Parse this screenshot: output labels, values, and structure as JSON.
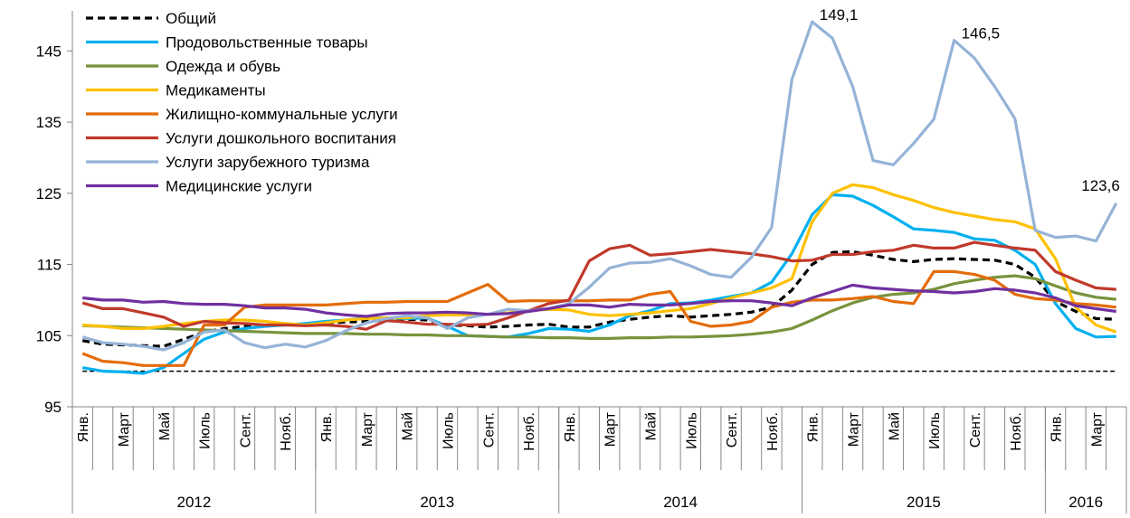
{
  "chart_data": {
    "type": "line",
    "categories": [
      "Янв.",
      null,
      "Март",
      null,
      "Май",
      null,
      "Июль",
      null,
      "Сент.",
      null,
      "Нояб.",
      null,
      "Янв.",
      null,
      "Март",
      null,
      "Май",
      null,
      "Июль",
      null,
      "Сент.",
      null,
      "Нояб.",
      null,
      "Янв.",
      null,
      "Март",
      null,
      "Май",
      null,
      "Июль",
      null,
      "Сент.",
      null,
      "Нояб.",
      null,
      "Янв.",
      null,
      "Март",
      null,
      "Май",
      null,
      "Июль",
      null,
      "Сент.",
      null,
      "Нояб.",
      null,
      "Янв.",
      null,
      "Март",
      null
    ],
    "year_groups": [
      {
        "label": "2012",
        "months": 12
      },
      {
        "label": "2013",
        "months": 12
      },
      {
        "label": "2014",
        "months": 12
      },
      {
        "label": "2015",
        "months": 12
      },
      {
        "label": "2016",
        "months": 4
      }
    ],
    "ylim": [
      95,
      150
    ],
    "yticks": [
      95,
      105,
      115,
      125,
      135,
      145
    ],
    "reference_line": 100,
    "series": [
      {
        "name": "Общий",
        "color": "#000000",
        "dashed": true,
        "values": [
          104.3,
          103.8,
          103.7,
          103.6,
          103.5,
          104.5,
          105.5,
          106,
          106.3,
          106.5,
          106.5,
          106.6,
          106.8,
          106.9,
          107,
          107.2,
          107.3,
          107.2,
          106.5,
          106.4,
          106.2,
          106.3,
          106.5,
          106.6,
          106.2,
          106.2,
          106.9,
          107.3,
          107.6,
          107.8,
          107.6,
          107.8,
          108,
          108.3,
          109,
          111.4,
          115,
          116.7,
          116.8,
          116.3,
          115.7,
          115.4,
          115.7,
          115.8,
          115.7,
          115.6,
          115,
          113.2,
          109.8,
          108.4,
          107.4,
          107.3
        ]
      },
      {
        "name": "Продовольственные товары",
        "color": "#00b0f0",
        "values": [
          100.5,
          100,
          99.9,
          99.7,
          100.5,
          102.5,
          104.5,
          105.5,
          106,
          106.3,
          106.5,
          106.7,
          107,
          107.2,
          107.5,
          107.5,
          107.4,
          107.5,
          106.3,
          105,
          104.9,
          104.8,
          105.3,
          106,
          105.9,
          105.6,
          106.5,
          107.8,
          108.5,
          109.5,
          109.6,
          110,
          110.5,
          111,
          112.5,
          116.5,
          122,
          124.8,
          124.6,
          123.3,
          121.7,
          120,
          119.8,
          119.5,
          118.6,
          118.4,
          117,
          115,
          109.5,
          106,
          104.8,
          104.9
        ]
      },
      {
        "name": "Одежда и обувь",
        "color": "#77933c",
        "values": [
          106.4,
          106.3,
          106.2,
          106.1,
          106,
          105.9,
          105.8,
          105.7,
          105.6,
          105.5,
          105.4,
          105.3,
          105.3,
          105.3,
          105.2,
          105.2,
          105.1,
          105.1,
          105,
          105,
          104.9,
          104.8,
          104.8,
          104.7,
          104.7,
          104.6,
          104.6,
          104.7,
          104.7,
          104.8,
          104.8,
          104.9,
          105,
          105.2,
          105.5,
          106,
          107.2,
          108.5,
          109.6,
          110.4,
          110.8,
          111,
          111.5,
          112.3,
          112.8,
          113.2,
          113.4,
          113,
          112,
          111,
          110.4,
          110.1
        ]
      },
      {
        "name": "Медикаменты",
        "color": "#ffc000",
        "values": [
          106.5,
          106.3,
          106,
          106,
          106.3,
          106.7,
          107,
          107.2,
          107.2,
          107,
          106.7,
          106.5,
          106.8,
          107.2,
          107.4,
          107.5,
          107.5,
          107.8,
          107.9,
          107.9,
          108,
          108.2,
          108.5,
          108.7,
          108.6,
          108,
          107.8,
          108,
          108.2,
          108.5,
          108.8,
          109.5,
          110.3,
          111,
          111.7,
          113,
          121,
          125,
          126.2,
          125.8,
          124.8,
          124,
          123,
          122.3,
          121.8,
          121.3,
          121,
          120,
          115.8,
          109,
          106.5,
          105.5
        ]
      },
      {
        "name": "Жилищно-коммунальные услуги",
        "color": "#e46c0a",
        "values": [
          102.5,
          101.4,
          101.2,
          100.8,
          100.8,
          100.8,
          106.5,
          106.5,
          109,
          109.3,
          109.3,
          109.3,
          109.3,
          109.5,
          109.7,
          109.7,
          109.8,
          109.8,
          109.8,
          111,
          112.2,
          109.8,
          109.9,
          109.9,
          109.9,
          109.9,
          110,
          110,
          110.8,
          111.2,
          107,
          106.3,
          106.5,
          107,
          109,
          109.7,
          110,
          110,
          110.2,
          110.5,
          109.8,
          109.5,
          114,
          114,
          113.6,
          112.8,
          110.8,
          110.2,
          110,
          109.5,
          109.3,
          109
        ]
      },
      {
        "name": "Услуги дошкольного воспитания",
        "color": "#c0392b",
        "values": [
          109.6,
          108.8,
          108.8,
          108.2,
          107.6,
          106.3,
          107,
          106.8,
          106.7,
          106.5,
          106.5,
          106.4,
          106.5,
          106.3,
          105.9,
          107.1,
          106.9,
          106.6,
          106.6,
          106.5,
          106.6,
          107.5,
          108.5,
          109.5,
          110,
          115.5,
          117.2,
          117.7,
          116.3,
          116.5,
          116.8,
          117.1,
          116.8,
          116.5,
          116.1,
          115.5,
          115.6,
          116.4,
          116.4,
          116.8,
          117,
          117.7,
          117.3,
          117.3,
          118.1,
          117.7,
          117.3,
          117,
          114,
          112.8,
          111.7,
          111.5
        ]
      },
      {
        "name": "Услуги зарубежного туризма",
        "color": "#95b3d7",
        "values": [
          104.8,
          104,
          103.8,
          103.5,
          103,
          104,
          105.5,
          105.8,
          104,
          103.3,
          103.8,
          103.4,
          104.3,
          105.7,
          106.8,
          107.4,
          107.8,
          107.5,
          106,
          107.5,
          108,
          108.7,
          108.5,
          108.8,
          109.5,
          111.8,
          114.5,
          115.2,
          115.3,
          115.8,
          114.8,
          113.6,
          113.2,
          116,
          120.2,
          141,
          149.1,
          146.8,
          140,
          129.6,
          129,
          132,
          135.4,
          146.5,
          144,
          140,
          135.5,
          119.8,
          118.8,
          119,
          118.3,
          123.6
        ],
        "value_labels": [
          null,
          null,
          null,
          null,
          null,
          null,
          null,
          null,
          null,
          null,
          null,
          null,
          null,
          null,
          null,
          null,
          null,
          null,
          null,
          null,
          null,
          null,
          null,
          null,
          null,
          null,
          null,
          null,
          null,
          null,
          null,
          null,
          null,
          null,
          null,
          null,
          "149,1",
          null,
          null,
          null,
          null,
          null,
          null,
          "146,5",
          null,
          null,
          null,
          null,
          null,
          null,
          null,
          "123,6"
        ]
      },
      {
        "name": "Медицинские услуги",
        "color": "#7030a0",
        "values": [
          110.3,
          110,
          110,
          109.7,
          109.8,
          109.5,
          109.4,
          109.4,
          109.2,
          108.9,
          108.9,
          108.7,
          108.2,
          107.9,
          107.7,
          108.1,
          108.2,
          108.2,
          108.3,
          108.2,
          108,
          108.1,
          108.4,
          108.8,
          109.3,
          109.3,
          109,
          109.4,
          109.3,
          109.3,
          109.5,
          109.8,
          109.9,
          109.9,
          109.6,
          109.2,
          110.3,
          111.2,
          112.1,
          111.7,
          111.5,
          111.3,
          111.2,
          111,
          111.2,
          111.6,
          111.4,
          111,
          110.3,
          109.2,
          108.8,
          108.4
        ]
      }
    ]
  }
}
